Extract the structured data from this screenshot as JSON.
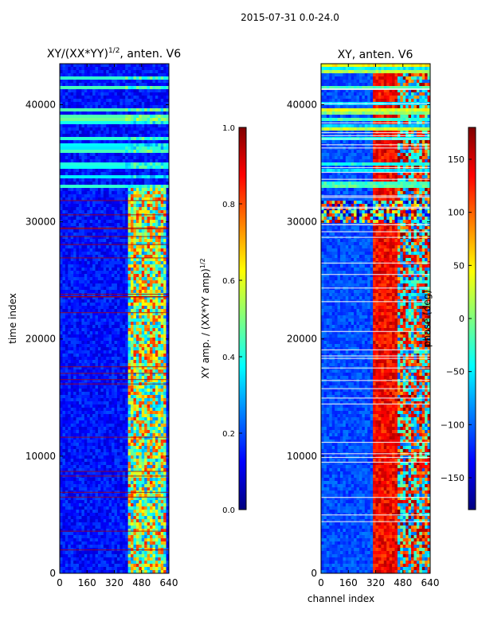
{
  "suptitle": "2015-07-31 0.0-24.0",
  "colors": {
    "jet_stops": [
      "#00007f",
      "#0000ff",
      "#007fff",
      "#00ffff",
      "#7fff7f",
      "#ffff00",
      "#ff7f00",
      "#ff0000",
      "#7f0000"
    ],
    "frame": "#000000"
  },
  "chart_data": [
    {
      "type": "heatmap",
      "title": "XY/(XX*YY)^1/2, anten. V6",
      "title_main": "XY/(XX*YY)",
      "title_exp": "1/2",
      "title_suffix": ", anten. V6",
      "xlabel": "",
      "ylabel": "time index",
      "xlim": [
        0,
        640
      ],
      "ylim": [
        0,
        43500
      ],
      "xticks": [
        "0",
        "160",
        "320",
        "480",
        "640"
      ],
      "yticks": [
        "0",
        "10000",
        "20000",
        "30000",
        "40000"
      ],
      "colorbar": {
        "label": "XY amp. / (XX*YY amp)^1/2",
        "label_main": "XY amp. / (XX*YY amp)",
        "label_exp": "1/2",
        "range": [
          0.0,
          1.0
        ],
        "ticks": [
          "0.0",
          "0.2",
          "0.4",
          "0.6",
          "0.8",
          "1.0"
        ]
      },
      "description": "Mostly low normalized amplitude (~0.1-0.2) with bright band (0.5-0.9) at channels ~400-640; uniform cyan/green horizontal bands at times ~33000-41000"
    },
    {
      "type": "heatmap",
      "title": "XY, anten. V6",
      "xlabel": "channel index",
      "ylabel": "",
      "xlim": [
        0,
        640
      ],
      "ylim": [
        0,
        43500
      ],
      "xticks": [
        "0",
        "160",
        "320",
        "480",
        "640"
      ],
      "yticks": [
        "0",
        "10000",
        "20000",
        "30000",
        "40000"
      ],
      "colorbar": {
        "label": "phase (deg)",
        "range": [
          -180,
          180
        ],
        "ticks": [
          "−150",
          "−100",
          "−50",
          "0",
          "50",
          "100",
          "150"
        ]
      },
      "description": "Phase mostly ~-120 deg at channels 0-320, ramping through red/yellow at channels ~320-480 with wrapping; noisy speckle band near times 30000-31500"
    }
  ]
}
